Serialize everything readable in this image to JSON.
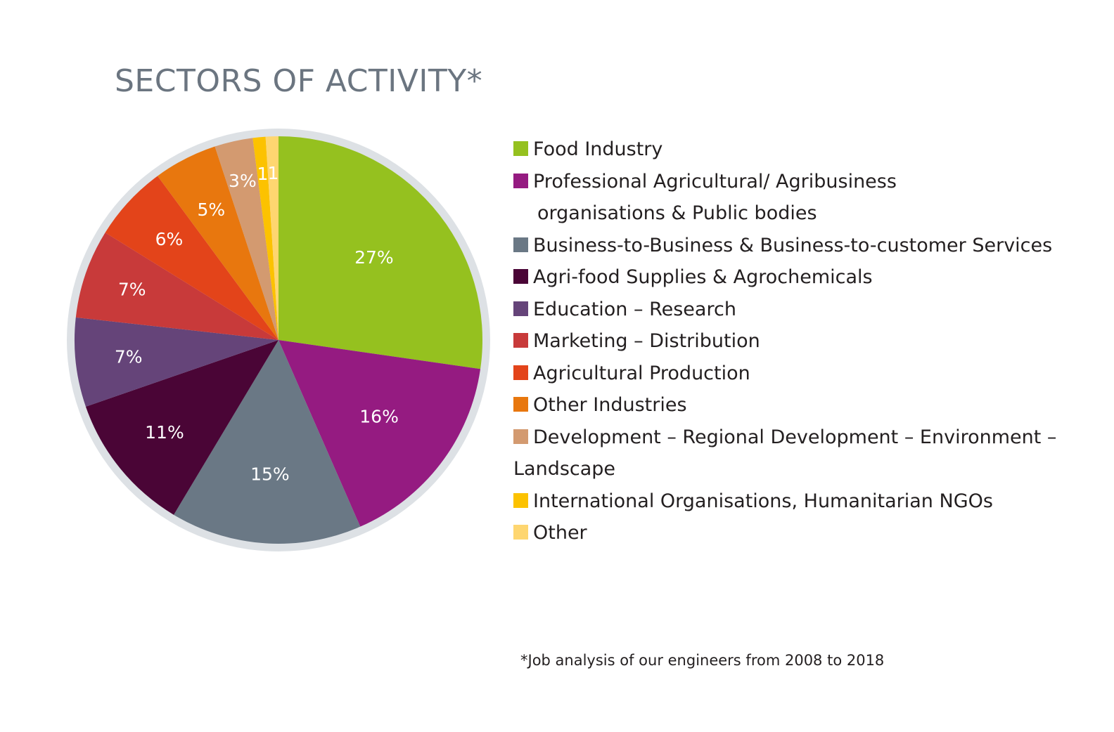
{
  "chart_data": {
    "type": "pie",
    "title": "SECTORS OF ACTIVITY*",
    "footnote": "*Job analysis of our engineers from 2008 to 2018",
    "slices": [
      {
        "label": "Food Industry",
        "value": 27,
        "display": "27%",
        "color": "#95c11f"
      },
      {
        "label": "Professional Agricultural/ Agribusiness",
        "label_cont": "organisations & Public bodies",
        "value": 16,
        "display": "16%",
        "color": "#951b81"
      },
      {
        "label": "Business-to-Business & Business-to-customer Services",
        "value": 15,
        "display": "15%",
        "color": "#6a7885"
      },
      {
        "label": "Agri-food Supplies & Agrochemicals",
        "value": 11,
        "display": "11%",
        "color": "#4a0536"
      },
      {
        "label": "Education – Research",
        "value": 7,
        "display": "7%",
        "color": "#654479"
      },
      {
        "label": "Marketing – Distribution",
        "value": 7,
        "display": "7%",
        "color": "#c83a3a"
      },
      {
        "label": "Agricultural Production",
        "value": 6,
        "display": "6%",
        "color": "#e3441a"
      },
      {
        "label": "Other Industries",
        "value": 5,
        "display": "5%",
        "color": "#e8770e"
      },
      {
        "label": "Development – Regional Development – Environment –",
        "label_cont": "Landscape",
        "value": 3,
        "display": "3%",
        "color": "#d39a70"
      },
      {
        "label": "International Organisations, Humanitarian NGOs",
        "value": 1,
        "display": "1",
        "color": "#fcc200"
      },
      {
        "label": "Other",
        "value": 1,
        "display": "1",
        "color": "#fed670"
      }
    ],
    "legend_position": "right",
    "ring_color": "#dde1e5"
  }
}
